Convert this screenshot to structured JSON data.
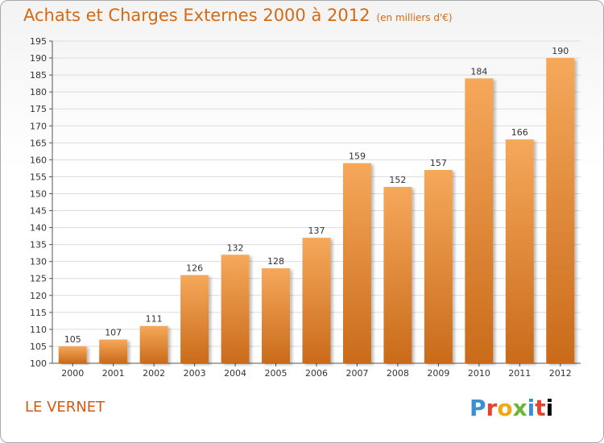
{
  "title": "Achats et Charges Externes 2000 à 2012",
  "unit": "(en milliers d'€)",
  "location": "LE VERNET",
  "logo_text": "Proxiti",
  "colors": {
    "title": "#d46a14",
    "bar_light": "#f6a85a",
    "bar_dark": "#c96b1b",
    "grid": "#dcdcdc"
  },
  "chart_data": {
    "type": "bar",
    "title": "Achats et Charges Externes 2000 à 2012",
    "xlabel": "",
    "ylabel": "",
    "categories": [
      "2000",
      "2001",
      "2002",
      "2003",
      "2004",
      "2005",
      "2006",
      "2007",
      "2008",
      "2009",
      "2010",
      "2011",
      "2012"
    ],
    "values": [
      105,
      107,
      111,
      126,
      132,
      128,
      137,
      159,
      152,
      157,
      184,
      166,
      190
    ],
    "ylim": [
      100,
      195
    ],
    "yticks": [
      100,
      105,
      110,
      115,
      120,
      125,
      130,
      135,
      140,
      145,
      150,
      155,
      160,
      165,
      170,
      175,
      180,
      185,
      190,
      195
    ],
    "grid": true
  }
}
